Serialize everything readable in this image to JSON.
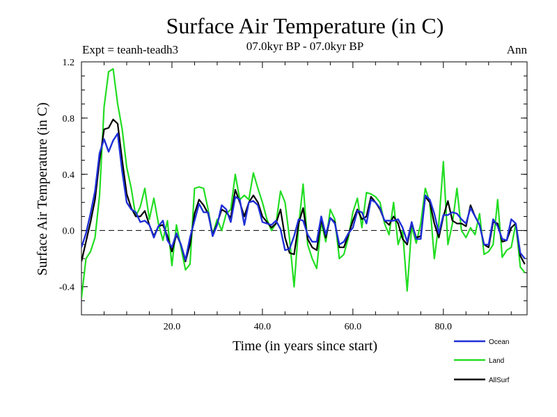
{
  "chart_data": {
    "type": "line",
    "title": "Surface Air Temperature (in C)",
    "subtitle": "07.0kyr BP - 07.0kyr BP",
    "left_note": "Expt = teanh-teadh3",
    "right_note": "Ann",
    "xlabel": "Time (in years since start)",
    "ylabel": "Surface Air Temperature (in C)",
    "xlim": [
      0,
      98.5
    ],
    "ylim": [
      -0.6,
      1.2
    ],
    "xticks": [
      20,
      40,
      60,
      80
    ],
    "xtick_labels": [
      "20.0",
      "40.0",
      "60.0",
      "80.0"
    ],
    "yticks": [
      -0.4,
      0.0,
      0.4,
      0.8,
      1.2
    ],
    "ytick_labels": [
      "-0.4",
      "0.0",
      "0.4",
      "0.8",
      "1.2"
    ],
    "zero_line": "dashed",
    "x": [
      0,
      1,
      2,
      3,
      4,
      5,
      6,
      7,
      8,
      9,
      10,
      11,
      12,
      13,
      14,
      15,
      16,
      17,
      18,
      19,
      20,
      21,
      22,
      23,
      24,
      25,
      26,
      27,
      28,
      29,
      30,
      31,
      32,
      33,
      34,
      35,
      36,
      37,
      38,
      39,
      40,
      41,
      42,
      43,
      44,
      45,
      46,
      47,
      48,
      49,
      50,
      51,
      52,
      53,
      54,
      55,
      56,
      57,
      58,
      59,
      60,
      61,
      62,
      63,
      64,
      65,
      66,
      67,
      68,
      69,
      70,
      71,
      72,
      73,
      74,
      75,
      76,
      77,
      78,
      79,
      80,
      81,
      82,
      83,
      84,
      85,
      86,
      87,
      88,
      89,
      90,
      91,
      92,
      93,
      94,
      95,
      96,
      97,
      98
    ],
    "series": [
      {
        "name": "Ocean",
        "color": "#1f2fd6",
        "values": [
          -0.12,
          -0.02,
          0.12,
          0.28,
          0.55,
          0.65,
          0.56,
          0.64,
          0.69,
          0.42,
          0.2,
          0.15,
          0.13,
          0.06,
          0.07,
          0.04,
          -0.05,
          0.03,
          0.07,
          -0.07,
          -0.12,
          -0.02,
          -0.1,
          -0.21,
          -0.05,
          0.07,
          0.19,
          0.13,
          0.13,
          -0.04,
          0.04,
          0.18,
          0.15,
          0.06,
          0.24,
          0.22,
          0.04,
          0.2,
          0.21,
          0.18,
          0.06,
          0.05,
          0.04,
          0.07,
          0.01,
          -0.14,
          -0.13,
          -0.04,
          0.08,
          0.07,
          -0.03,
          -0.08,
          -0.08,
          0.1,
          -0.03,
          0.09,
          0.05,
          -0.1,
          -0.08,
          -0.02,
          0.02,
          0.14,
          0.13,
          0.05,
          0.22,
          0.2,
          0.16,
          0.07,
          0.07,
          0.07,
          0.08,
          0.02,
          -0.08,
          0.06,
          -0.06,
          -0.06,
          0.25,
          0.22,
          0.12,
          -0.02,
          0.11,
          0.11,
          0.13,
          0.12,
          0.08,
          0.05,
          0.16,
          0.1,
          0.04,
          -0.1,
          -0.1,
          0.08,
          0.03,
          -0.06,
          -0.07,
          0.08,
          0.05,
          -0.16,
          -0.2
        ]
      },
      {
        "name": "Land",
        "color": "#22dd22",
        "values": [
          -0.48,
          -0.2,
          -0.15,
          -0.05,
          0.25,
          0.88,
          1.13,
          1.15,
          0.9,
          0.72,
          0.45,
          0.3,
          0.1,
          0.17,
          0.3,
          0.08,
          0.23,
          0.05,
          -0.07,
          0.07,
          -0.25,
          0.04,
          -0.12,
          -0.28,
          -0.24,
          0.3,
          0.31,
          0.3,
          0.15,
          -0.03,
          0.08,
          0.0,
          0.12,
          0.15,
          0.4,
          0.22,
          0.25,
          0.22,
          0.41,
          0.3,
          0.2,
          0.08,
          0.0,
          0.05,
          0.28,
          0.2,
          -0.06,
          -0.4,
          0.03,
          0.33,
          -0.1,
          -0.2,
          -0.27,
          0.06,
          -0.08,
          0.15,
          0.08,
          -0.2,
          -0.17,
          -0.05,
          0.13,
          0.23,
          0.02,
          0.27,
          0.26,
          0.24,
          0.2,
          0.05,
          -0.03,
          0.2,
          -0.1,
          0.0,
          -0.43,
          0.03,
          -0.09,
          0.05,
          0.3,
          0.2,
          -0.2,
          0.05,
          0.49,
          -0.1,
          0.05,
          0.3,
          0.0,
          -0.05,
          0.02,
          -0.03,
          0.12,
          -0.17,
          -0.15,
          -0.1,
          0.22,
          -0.19,
          -0.14,
          -0.12,
          0.05,
          -0.26,
          -0.3
        ]
      },
      {
        "name": "AllSurf",
        "color": "#000000",
        "values": [
          -0.22,
          -0.08,
          0.06,
          0.22,
          0.5,
          0.72,
          0.73,
          0.79,
          0.76,
          0.5,
          0.26,
          0.16,
          0.1,
          0.1,
          0.14,
          0.04,
          -0.04,
          0.03,
          0.04,
          -0.04,
          -0.15,
          -0.03,
          -0.1,
          -0.22,
          -0.1,
          0.12,
          0.22,
          0.18,
          0.12,
          -0.03,
          0.05,
          0.15,
          0.13,
          0.09,
          0.29,
          0.2,
          0.1,
          0.2,
          0.25,
          0.2,
          0.1,
          0.06,
          0.02,
          0.05,
          0.15,
          -0.05,
          -0.16,
          -0.17,
          0.05,
          0.16,
          -0.06,
          -0.12,
          -0.14,
          0.08,
          -0.05,
          0.09,
          0.06,
          -0.12,
          -0.12,
          -0.03,
          0.07,
          0.15,
          0.08,
          0.1,
          0.24,
          0.2,
          0.15,
          0.07,
          0.04,
          0.1,
          0.05,
          -0.06,
          -0.1,
          0.05,
          -0.05,
          -0.04,
          0.24,
          0.2,
          0.05,
          -0.05,
          0.1,
          0.21,
          0.07,
          0.05,
          0.05,
          0.03,
          0.18,
          0.1,
          0.04,
          -0.1,
          -0.12,
          0.06,
          0.05,
          -0.08,
          -0.07,
          0.02,
          0.05,
          -0.18,
          -0.24
        ]
      }
    ],
    "legend_placement": "bottom-right"
  }
}
